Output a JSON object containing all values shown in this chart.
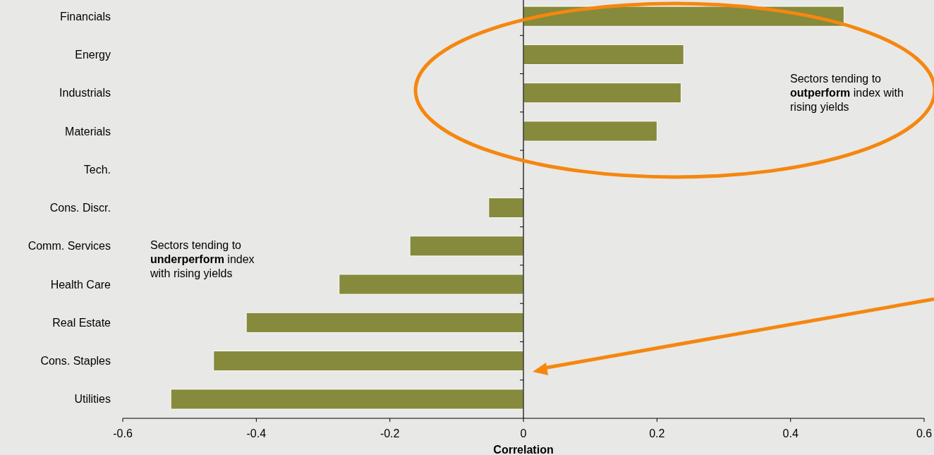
{
  "chart_data": {
    "type": "bar",
    "orientation": "horizontal",
    "xlabel": "Correlation",
    "categories": [
      "Financials",
      "Energy",
      "Industrials",
      "Materials",
      "Tech.",
      "Cons. Discr.",
      "Comm. Services",
      "Health Care",
      "Real Estate",
      "Cons. Staples",
      "Utilities"
    ],
    "values": [
      0.48,
      0.24,
      0.236,
      0.2,
      0,
      -0.052,
      -0.17,
      -0.276,
      -0.415,
      -0.464,
      -0.528
    ],
    "color": "#868a3c",
    "xlim": [
      -0.6,
      0.6
    ],
    "xticks": [
      -0.6,
      -0.4,
      -0.2,
      0,
      0.2,
      0.4,
      0.6
    ],
    "annotations": [
      "Sectors tending to\noutperform index with\nrising yields",
      "Sectors tending to\nunderperform index\nwith rising yields"
    ]
  }
}
